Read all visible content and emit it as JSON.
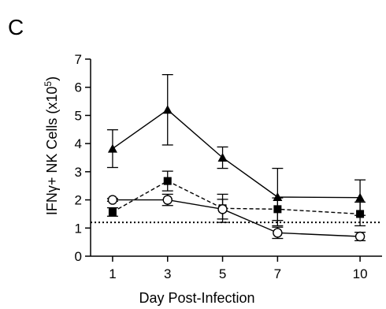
{
  "panel_label": "C",
  "chart_data": {
    "type": "line",
    "title": "",
    "xlabel": "Day Post-Infection",
    "ylabel_main": "IFNγ+ NK Cells (x10",
    "ylabel_exp": "5",
    "ylabel_close": ")",
    "x": [
      1,
      3,
      5,
      7,
      10
    ],
    "x_ticks": [
      "1",
      "3",
      "5",
      "7",
      "10"
    ],
    "ylim": [
      0,
      7
    ],
    "y_ticks": [
      "0",
      "1",
      "2",
      "3",
      "4",
      "5",
      "6",
      "7"
    ],
    "grid": false,
    "legend": "none",
    "reference_line": {
      "y": 1.2,
      "style": "dotted"
    },
    "series": [
      {
        "marker": "triangle-filled",
        "line": "solid",
        "values": [
          3.82,
          5.2,
          3.5,
          2.1,
          2.08
        ],
        "errors": [
          0.67,
          1.25,
          0.38,
          1.02,
          0.63
        ]
      },
      {
        "marker": "square-filled",
        "line": "dashed",
        "values": [
          1.57,
          2.67,
          1.7,
          1.67,
          1.5
        ],
        "errors": [
          0.15,
          0.35,
          0.5,
          0.4,
          0.42
        ]
      },
      {
        "marker": "circle-open",
        "line": "solid",
        "values": [
          2.0,
          2.0,
          1.67,
          0.83,
          0.7
        ],
        "errors": [
          0.05,
          0.2,
          0.35,
          0.2,
          0.15
        ]
      }
    ]
  }
}
